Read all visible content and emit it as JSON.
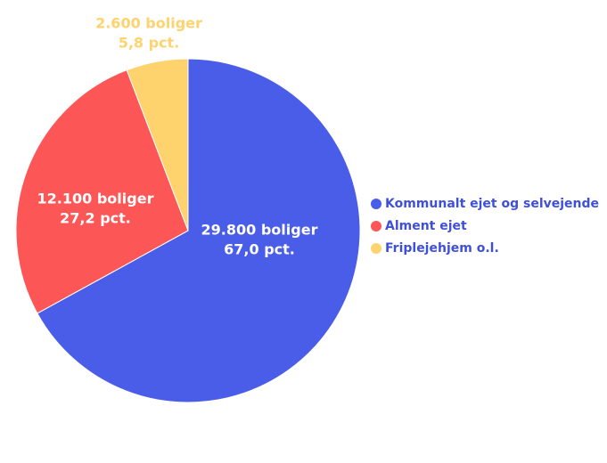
{
  "chart_data": {
    "type": "pie",
    "categories": [
      "Kommunalt ejet og selvejende",
      "Alment ejet",
      "Friplejehjem o.l."
    ],
    "values": [
      67.0,
      27.2,
      5.8
    ],
    "value_labels": [
      "67,0 pct.",
      "27,2 pct.",
      "5,8 pct."
    ],
    "counts": [
      29800,
      12100,
      2600
    ],
    "count_labels": [
      "29.800 boliger",
      "12.100 boliger",
      "2.600 boliger"
    ],
    "colors": [
      "#4a5de8",
      "#fc5657",
      "#fed36e"
    ],
    "legend": "right"
  }
}
